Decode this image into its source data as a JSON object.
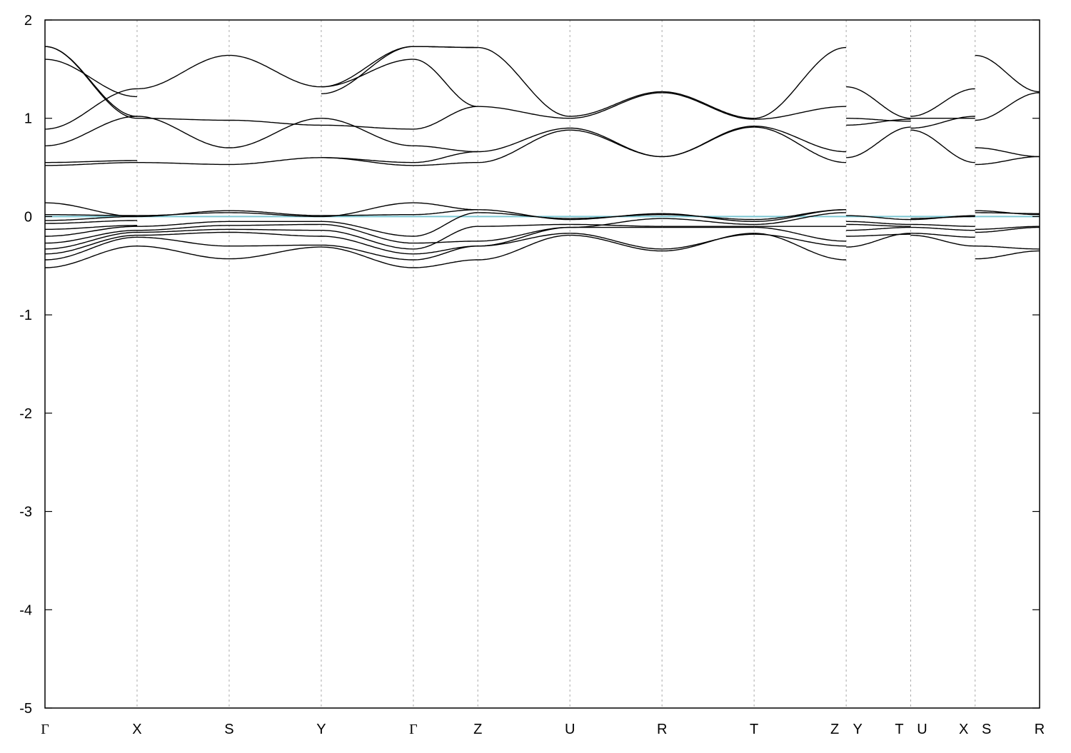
{
  "chart_data": {
    "type": "line",
    "title": "",
    "xlabel": "",
    "ylabel": "",
    "ylim": [
      -5,
      2
    ],
    "yticks": [
      2,
      1,
      0,
      -1,
      -2,
      -3,
      -4,
      -5
    ],
    "grid": "vertical dashed lines at high-symmetry points",
    "fermi_level": {
      "value": 0,
      "color": "#7ec8d3"
    },
    "band_color": "#000000",
    "kpoints": [
      {
        "label": "Γ",
        "x": 0.0
      },
      {
        "label": "X",
        "x": 1.0
      },
      {
        "label": "S",
        "x": 2.0
      },
      {
        "label": "Y",
        "x": 3.0
      },
      {
        "label": "Γ",
        "x": 4.0
      },
      {
        "label": "Z",
        "x": 4.7
      },
      {
        "label": "U",
        "x": 5.7
      },
      {
        "label": "R",
        "x": 6.7
      },
      {
        "label": "T",
        "x": 7.7
      },
      {
        "label": "Z",
        "x": 8.7
      },
      {
        "label": "Y",
        "x": 8.7
      },
      {
        "label": "T",
        "x": 9.4
      },
      {
        "label": "U",
        "x": 9.4
      },
      {
        "label": "X",
        "x": 10.1
      },
      {
        "label": "S",
        "x": 10.1
      },
      {
        "label": "R",
        "x": 10.8
      }
    ],
    "vlines": [
      1.0,
      2.0,
      3.0,
      4.0,
      4.7,
      5.7,
      6.7,
      7.7,
      8.7,
      9.4,
      10.1
    ],
    "xlim": [
      0,
      10.8
    ],
    "segments": [
      {
        "from": "Γ",
        "to": "X",
        "bands": [
          [
            -0.52,
            -0.3
          ],
          [
            -0.44,
            -0.21
          ],
          [
            -0.38,
            -0.19
          ],
          [
            -0.33,
            -0.16
          ],
          [
            -0.27,
            -0.14
          ],
          [
            -0.2,
            -0.1
          ],
          [
            -0.13,
            -0.09
          ],
          [
            -0.07,
            -0.04
          ],
          [
            -0.04,
            0.0
          ],
          [
            0.02,
            0.01
          ],
          [
            0.14,
            0.0
          ],
          [
            0.52,
            0.55
          ],
          [
            0.55,
            0.57
          ],
          [
            0.72,
            1.02
          ],
          [
            0.89,
            1.3
          ],
          [
            1.6,
            1.22
          ],
          [
            1.73,
            1.0
          ],
          [
            1.73,
            1.02
          ]
        ]
      },
      {
        "from": "X",
        "to": "S",
        "bands": [
          [
            -0.3,
            -0.43
          ],
          [
            -0.21,
            -0.3
          ],
          [
            -0.19,
            -0.16
          ],
          [
            -0.16,
            -0.13
          ],
          [
            -0.14,
            -0.09
          ],
          [
            -0.1,
            -0.05
          ],
          [
            0.0,
            0.06
          ],
          [
            0.01,
            0.04
          ],
          [
            0.55,
            0.53
          ],
          [
            1.02,
            0.7
          ],
          [
            1.0,
            0.98
          ],
          [
            1.3,
            1.64
          ]
        ]
      },
      {
        "from": "S",
        "to": "Y",
        "bands": [
          [
            -0.43,
            -0.31
          ],
          [
            -0.3,
            -0.29
          ],
          [
            -0.16,
            -0.2
          ],
          [
            -0.13,
            -0.14
          ],
          [
            -0.09,
            -0.08
          ],
          [
            -0.05,
            -0.05
          ],
          [
            0.06,
            0.01
          ],
          [
            0.04,
            0.0
          ],
          [
            0.53,
            0.6
          ],
          [
            0.7,
            1.0
          ],
          [
            0.98,
            0.93
          ],
          [
            1.64,
            1.32
          ]
        ]
      },
      {
        "from": "Y",
        "to": "Γ",
        "bands": [
          [
            -0.31,
            -0.52
          ],
          [
            -0.29,
            -0.44
          ],
          [
            -0.2,
            -0.38
          ],
          [
            -0.14,
            -0.33
          ],
          [
            -0.08,
            -0.27
          ],
          [
            -0.05,
            -0.2
          ],
          [
            0.01,
            0.02
          ],
          [
            0.0,
            0.14
          ],
          [
            0.6,
            0.52
          ],
          [
            0.6,
            0.55
          ],
          [
            1.0,
            0.72
          ],
          [
            0.93,
            0.89
          ],
          [
            1.32,
            1.6
          ],
          [
            1.25,
            1.73
          ],
          [
            1.32,
            1.73
          ]
        ]
      },
      {
        "from": "Γ",
        "to": "Z",
        "bands": [
          [
            -0.52,
            -0.44
          ],
          [
            -0.44,
            -0.3
          ],
          [
            -0.38,
            -0.3
          ],
          [
            -0.33,
            -0.1
          ],
          [
            -0.27,
            -0.25
          ],
          [
            -0.2,
            0.04
          ],
          [
            0.02,
            0.07
          ],
          [
            0.14,
            0.07
          ],
          [
            0.52,
            0.55
          ],
          [
            0.55,
            0.66
          ],
          [
            0.72,
            0.66
          ],
          [
            0.89,
            1.12
          ],
          [
            1.6,
            1.12
          ],
          [
            1.73,
            1.72
          ],
          [
            1.73,
            1.72
          ]
        ]
      },
      {
        "from": "Z",
        "to": "U",
        "bands": [
          [
            -0.44,
            -0.19
          ],
          [
            -0.3,
            -0.17
          ],
          [
            -0.3,
            -0.11
          ],
          [
            -0.1,
            -0.08
          ],
          [
            -0.25,
            -0.11
          ],
          [
            0.04,
            -0.02
          ],
          [
            0.07,
            -0.03
          ],
          [
            0.55,
            0.88
          ],
          [
            0.66,
            0.9
          ],
          [
            1.12,
            1.0
          ],
          [
            1.72,
            1.02
          ]
        ]
      },
      {
        "from": "U",
        "to": "R",
        "bands": [
          [
            -0.19,
            -0.35
          ],
          [
            -0.17,
            -0.33
          ],
          [
            -0.11,
            -0.11
          ],
          [
            -0.08,
            -0.1
          ],
          [
            -0.11,
            -0.02
          ],
          [
            -0.02,
            0.02
          ],
          [
            -0.03,
            0.03
          ],
          [
            0.88,
            0.61
          ],
          [
            0.9,
            0.61
          ],
          [
            1.0,
            1.26
          ],
          [
            1.02,
            1.27
          ]
        ]
      },
      {
        "from": "R",
        "to": "T",
        "bands": [
          [
            -0.35,
            -0.17
          ],
          [
            -0.33,
            -0.18
          ],
          [
            -0.11,
            -0.11
          ],
          [
            -0.1,
            -0.1
          ],
          [
            -0.02,
            -0.08
          ],
          [
            0.02,
            -0.03
          ],
          [
            0.03,
            -0.05
          ],
          [
            0.61,
            0.91
          ],
          [
            0.61,
            0.92
          ],
          [
            1.26,
            0.99
          ],
          [
            1.27,
            1.0
          ]
        ]
      },
      {
        "from": "T",
        "to": "Z",
        "bands": [
          [
            -0.17,
            -0.44
          ],
          [
            -0.18,
            -0.3
          ],
          [
            -0.11,
            -0.25
          ],
          [
            -0.1,
            -0.1
          ],
          [
            -0.08,
            0.04
          ],
          [
            -0.03,
            0.07
          ],
          [
            -0.05,
            0.07
          ],
          [
            0.91,
            0.55
          ],
          [
            0.92,
            0.66
          ],
          [
            0.99,
            1.12
          ],
          [
            1.0,
            1.72
          ]
        ]
      },
      {
        "from": "Y",
        "to": "T",
        "bands": [
          [
            -0.31,
            -0.17
          ],
          [
            -0.2,
            -0.18
          ],
          [
            -0.14,
            -0.11
          ],
          [
            -0.08,
            -0.1
          ],
          [
            -0.05,
            -0.08
          ],
          [
            0.01,
            -0.03
          ],
          [
            0.6,
            0.91
          ],
          [
            0.93,
            0.99
          ],
          [
            1.0,
            0.97
          ],
          [
            1.32,
            1.0
          ]
        ]
      },
      {
        "from": "U",
        "to": "X",
        "bands": [
          [
            -0.19,
            -0.3
          ],
          [
            -0.17,
            -0.21
          ],
          [
            -0.11,
            -0.14
          ],
          [
            -0.08,
            -0.1
          ],
          [
            -0.02,
            0.0
          ],
          [
            -0.03,
            0.01
          ],
          [
            0.88,
            0.55
          ],
          [
            0.9,
            1.02
          ],
          [
            1.0,
            1.0
          ],
          [
            1.02,
            1.3
          ]
        ]
      },
      {
        "from": "S",
        "to": "R",
        "bands": [
          [
            -0.43,
            -0.35
          ],
          [
            -0.3,
            -0.33
          ],
          [
            -0.16,
            -0.11
          ],
          [
            -0.13,
            -0.1
          ],
          [
            0.06,
            0.02
          ],
          [
            0.04,
            0.03
          ],
          [
            0.53,
            0.61
          ],
          [
            0.7,
            0.61
          ],
          [
            0.98,
            1.26
          ],
          [
            1.64,
            1.27
          ]
        ]
      }
    ]
  }
}
